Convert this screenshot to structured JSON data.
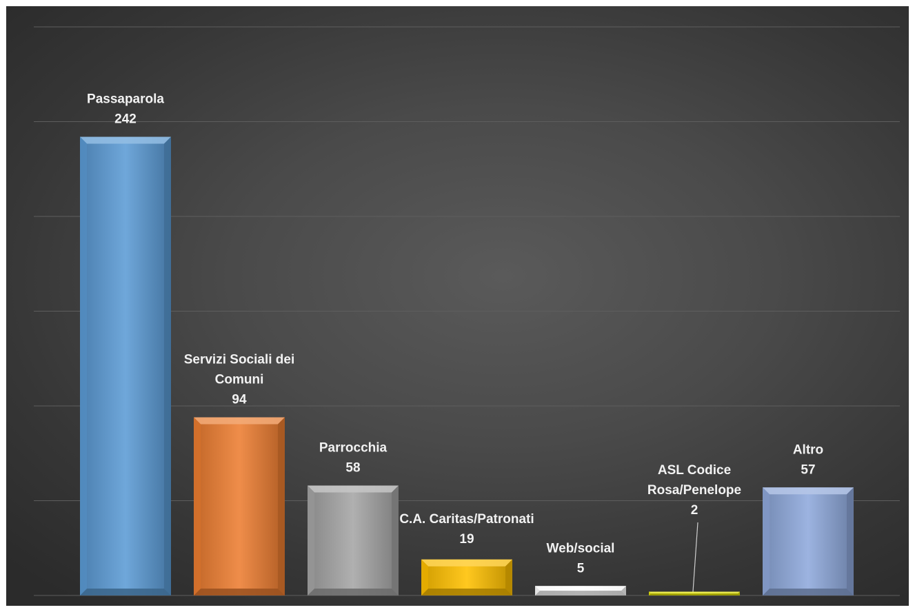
{
  "chart_data": {
    "type": "bar",
    "categories": [
      "Passaparola",
      "Servizi Sociali dei Comuni",
      "Parrocchia",
      "C.A. Caritas/Patronati",
      "Web/social",
      "ASL Codice Rosa/Penelope",
      "Altro"
    ],
    "label_lines": [
      [
        "Passaparola"
      ],
      [
        "Servizi Sociali dei",
        "Comuni"
      ],
      [
        "Parrocchia"
      ],
      [
        "C.A. Caritas/Patronati"
      ],
      [
        "Web/social"
      ],
      [
        "ASL Codice",
        "Rosa/Penelope"
      ],
      [
        "Altro"
      ]
    ],
    "values": [
      242,
      94,
      58,
      19,
      5,
      2,
      57
    ],
    "ylim": [
      0,
      300
    ],
    "grid": true,
    "legend": "none",
    "axis_labels_visible": false,
    "bar_colors": [
      "#5b9bd5",
      "#ed7d31",
      "#a5a5a5",
      "#ffc000",
      "#ffffff",
      "#e6e600",
      "#8fa9dc"
    ],
    "title": "",
    "xlabel": "",
    "ylabel": ""
  },
  "theme": {
    "gridline_color": "#5e5e5e",
    "label_color": "#f2f2f2"
  }
}
